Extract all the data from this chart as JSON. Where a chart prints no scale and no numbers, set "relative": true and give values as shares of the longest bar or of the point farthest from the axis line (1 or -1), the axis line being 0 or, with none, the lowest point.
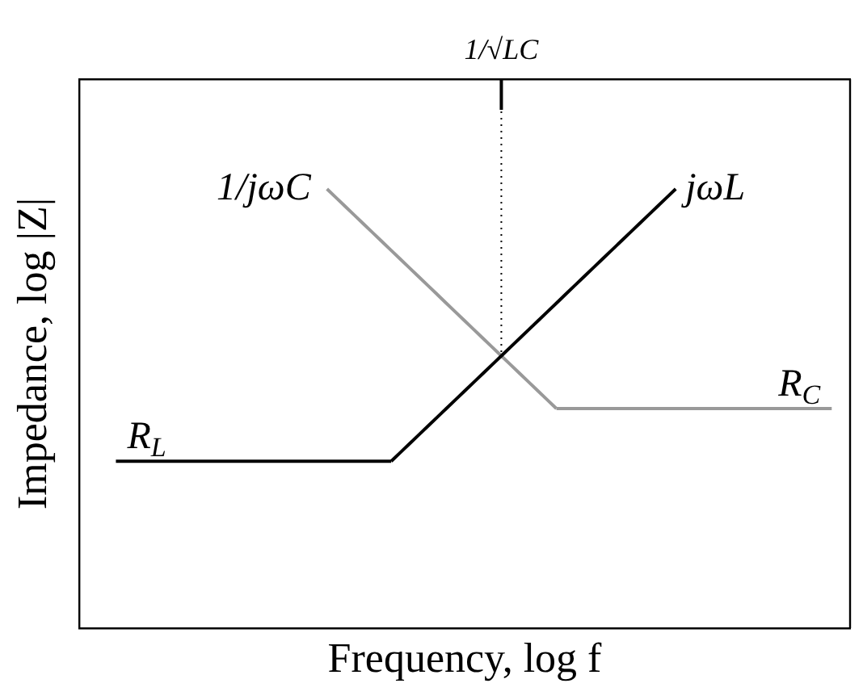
{
  "chart_data": {
    "type": "line",
    "xlabel": "Frequency, log f",
    "ylabel": "Impedance, log |Z|",
    "relative": true,
    "categories": [
      null,
      null,
      null,
      null,
      null,
      null,
      null,
      null,
      null,
      null,
      null,
      null,
      null,
      null,
      null,
      null,
      null,
      null,
      null,
      null,
      null,
      null,
      null,
      null,
      null,
      null,
      null,
      null,
      null,
      null,
      null,
      null,
      null,
      null,
      null,
      null,
      null,
      null,
      null,
      null,
      null,
      null,
      null,
      null,
      null,
      null,
      null,
      null,
      null,
      null,
      null,
      null,
      null,
      null,
      null,
      null,
      null,
      null,
      null,
      null,
      null,
      null,
      null,
      null,
      null,
      null,
      null,
      null,
      null,
      null,
      null,
      null,
      null,
      null,
      null,
      null,
      null,
      null,
      null,
      null,
      null,
      null,
      null,
      null,
      null
    ],
    "series": [
      {
        "name": "R$_{L}$",
        "color": "#000000",
        "values": [
          null,
          null,
          null,
          null,
          0.38,
          0.38,
          0.38,
          0.38,
          0.38,
          0.38,
          0.38,
          0.38,
          0.38,
          0.38,
          0.38,
          0.38,
          0.38,
          0.38,
          0.38,
          0.38,
          0.38,
          0.38,
          0.38,
          0.38,
          0.38,
          0.38,
          0.38,
          0.38,
          0.38,
          0.38,
          0.38,
          0.38,
          0.38,
          0.38,
          0.38,
          null,
          null,
          null,
          null,
          null,
          null,
          null,
          null,
          null,
          null,
          null,
          null,
          null,
          null,
          null,
          null,
          null,
          null,
          null,
          null,
          null,
          null,
          null,
          null,
          null,
          null,
          null,
          null,
          null,
          null,
          null,
          null,
          null,
          null,
          null,
          null,
          null,
          null,
          null,
          null,
          null,
          null,
          null,
          null,
          null,
          null,
          null,
          null,
          null,
          null
        ]
      },
      {
        "name": "jωL",
        "color": "#000000",
        "values": [
          null,
          null,
          null,
          null,
          null,
          null,
          null,
          null,
          null,
          null,
          null,
          null,
          null,
          null,
          null,
          null,
          null,
          null,
          null,
          null,
          null,
          null,
          null,
          null,
          null,
          null,
          null,
          null,
          null,
          null,
          null,
          null,
          null,
          null,
          0.38,
          0.4,
          0.42,
          0.44,
          0.46,
          0.48,
          0.5,
          0.52,
          0.54,
          0.56,
          0.58,
          0.6,
          0.62,
          0.64,
          0.66,
          0.68,
          0.7,
          0.72,
          0.74,
          0.76,
          0.78,
          0.8,
          0.82,
          0.84,
          0.86,
          0.88,
          0.9,
          0.92,
          0.94,
          0.96,
          0.98,
          1,
          null,
          null,
          null,
          null,
          null,
          null,
          null,
          null,
          null,
          null,
          null,
          null,
          null,
          null,
          null,
          null,
          null,
          null,
          null
        ]
      },
      {
        "name": "1/jωC",
        "color": "#999999",
        "values": [
          null,
          null,
          null,
          null,
          null,
          null,
          null,
          null,
          null,
          null,
          null,
          null,
          null,
          null,
          null,
          null,
          null,
          null,
          null,
          null,
          null,
          null,
          null,
          null,
          null,
          null,
          null,
          1,
          0.98,
          0.96,
          0.94,
          0.92,
          0.9,
          0.88,
          0.86,
          0.84,
          0.82,
          0.8,
          0.78,
          0.76,
          0.74,
          0.72,
          0.7,
          0.68,
          0.66,
          0.64,
          0.62,
          0.6,
          0.58,
          0.56,
          0.54,
          0.52,
          0.5,
          null,
          null,
          null,
          null,
          null,
          null,
          null,
          null,
          null,
          null,
          null,
          null,
          null,
          null,
          null,
          null,
          null,
          null,
          null,
          null,
          null,
          null,
          null,
          null,
          null,
          null,
          null,
          null,
          null,
          null,
          null,
          null
        ]
      },
      {
        "name": "R$_{C}$",
        "color": "#999999",
        "values": [
          null,
          null,
          null,
          null,
          null,
          null,
          null,
          null,
          null,
          null,
          null,
          null,
          null,
          null,
          null,
          null,
          null,
          null,
          null,
          null,
          null,
          null,
          null,
          null,
          null,
          null,
          null,
          null,
          null,
          null,
          null,
          null,
          null,
          null,
          null,
          null,
          null,
          null,
          null,
          null,
          null,
          null,
          null,
          null,
          null,
          null,
          null,
          null,
          null,
          null,
          null,
          null,
          0.5,
          0.5,
          0.5,
          0.5,
          0.5,
          0.5,
          0.5,
          0.5,
          0.5,
          0.5,
          0.5,
          0.5,
          0.5,
          0.5,
          0.5,
          0.5,
          0.5,
          0.5,
          0.5,
          0.5,
          0.5,
          0.5,
          0.5,
          0.5,
          0.5,
          0.5,
          0.5,
          0.5,
          0.5,
          0.5,
          0.5,
          null,
          null
        ]
      }
    ],
    "annotations": [
      "1/√LC"
    ]
  }
}
